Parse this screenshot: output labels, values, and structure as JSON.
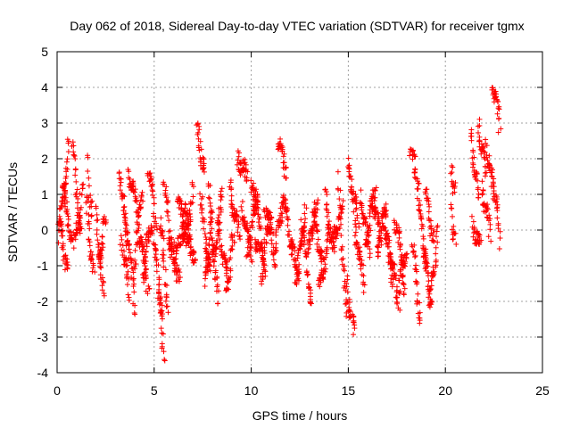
{
  "chart_data": {
    "type": "scatter",
    "title": "Day 062 of 2018, Sidereal Day-to-day VTEC variation (SDTVAR) for receiver tgmx",
    "xlabel": "GPS time / hours",
    "ylabel": "SDTVAR / TECUs",
    "xlim": [
      0,
      25
    ],
    "ylim": [
      -4,
      5
    ],
    "xticks": [
      "0",
      "5",
      "10",
      "15",
      "20",
      "25"
    ],
    "yticks": [
      "-4",
      "-3",
      "-2",
      "-1",
      "0",
      "1",
      "2",
      "3",
      "4",
      "5"
    ],
    "grid": true,
    "marker": "+",
    "color": "#ff0000",
    "segments": [
      {
        "x": [
          0.05,
          0.6
        ],
        "y": [
          -0.3,
          2.4
        ]
      },
      {
        "x": [
          0.1,
          0.55
        ],
        "y": [
          0.2,
          -1.1
        ]
      },
      {
        "x": [
          0.3,
          0.8
        ],
        "y": [
          1.2,
          -0.4
        ]
      },
      {
        "x": [
          0.8,
          1.25
        ],
        "y": [
          2.3,
          -0.3
        ]
      },
      {
        "x": [
          0.9,
          1.3
        ],
        "y": [
          -0.5,
          1.1
        ]
      },
      {
        "x": [
          1.5,
          1.9
        ],
        "y": [
          0.8,
          -1.4
        ]
      },
      {
        "x": [
          1.6,
          1.8
        ],
        "y": [
          1.9,
          0.2
        ]
      },
      {
        "x": [
          2.0,
          2.4
        ],
        "y": [
          0.5,
          -2.0
        ]
      },
      {
        "x": [
          2.1,
          2.5
        ],
        "y": [
          -0.8,
          0.2
        ]
      },
      {
        "x": [
          3.2,
          3.6
        ],
        "y": [
          1.8,
          -0.3
        ]
      },
      {
        "x": [
          3.3,
          3.7
        ],
        "y": [
          -0.2,
          -1.8
        ]
      },
      {
        "x": [
          3.5,
          4.0
        ],
        "y": [
          0.5,
          -2.1
        ]
      },
      {
        "x": [
          3.7,
          4.2
        ],
        "y": [
          1.7,
          0.4
        ]
      },
      {
        "x": [
          4.0,
          4.4
        ],
        "y": [
          -0.8,
          1.2
        ]
      },
      {
        "x": [
          4.2,
          4.7
        ],
        "y": [
          0.1,
          -1.6
        ]
      },
      {
        "x": [
          4.4,
          4.9
        ],
        "y": [
          -1.2,
          0.3
        ]
      },
      {
        "x": [
          4.7,
          5.1
        ],
        "y": [
          1.8,
          0.2
        ]
      },
      {
        "x": [
          5.0,
          5.4
        ],
        "y": [
          -0.2,
          -2.3
        ]
      },
      {
        "x": [
          5.2,
          5.5
        ],
        "y": [
          -1.5,
          -3.5
        ]
      },
      {
        "x": [
          5.3,
          5.7
        ],
        "y": [
          0.4,
          -2.1
        ]
      },
      {
        "x": [
          5.5,
          5.9
        ],
        "y": [
          1.4,
          -0.6
        ]
      },
      {
        "x": [
          5.8,
          6.3
        ],
        "y": [
          -0.3,
          -1.3
        ]
      },
      {
        "x": [
          6.0,
          6.5
        ],
        "y": [
          -1.2,
          0.5
        ]
      },
      {
        "x": [
          6.2,
          6.8
        ],
        "y": [
          0.8,
          -0.4
        ]
      },
      {
        "x": [
          6.5,
          7.0
        ],
        "y": [
          -0.5,
          1.1
        ]
      },
      {
        "x": [
          6.6,
          7.1
        ],
        "y": [
          0.6,
          -1.0
        ]
      },
      {
        "x": [
          7.2,
          7.6
        ],
        "y": [
          2.8,
          1.6
        ]
      },
      {
        "x": [
          7.4,
          7.9
        ],
        "y": [
          0.8,
          -1.3
        ]
      },
      {
        "x": [
          7.6,
          8.0
        ],
        "y": [
          -1.6,
          0.4
        ]
      },
      {
        "x": [
          7.8,
          8.3
        ],
        "y": [
          1.1,
          -2.2
        ]
      },
      {
        "x": [
          8.0,
          8.5
        ],
        "y": [
          -1.0,
          0.9
        ]
      },
      {
        "x": [
          8.3,
          8.8
        ],
        "y": [
          0.2,
          -1.5
        ]
      },
      {
        "x": [
          8.7,
          9.1
        ],
        "y": [
          -1.7,
          -0.2
        ]
      },
      {
        "x": [
          8.9,
          9.4
        ],
        "y": [
          1.2,
          -0.3
        ]
      },
      {
        "x": [
          9.3,
          9.8
        ],
        "y": [
          2.1,
          1.4
        ]
      },
      {
        "x": [
          9.5,
          10.0
        ],
        "y": [
          0.7,
          -0.7
        ]
      },
      {
        "x": [
          9.8,
          10.3
        ],
        "y": [
          -0.5,
          0.8
        ]
      },
      {
        "x": [
          10.0,
          10.5
        ],
        "y": [
          1.5,
          0.1
        ]
      },
      {
        "x": [
          10.2,
          10.7
        ],
        "y": [
          -0.2,
          -1.0
        ]
      },
      {
        "x": [
          10.5,
          11.0
        ],
        "y": [
          -1.2,
          0.4
        ]
      },
      {
        "x": [
          10.7,
          11.2
        ],
        "y": [
          0.8,
          -0.6
        ]
      },
      {
        "x": [
          11.2,
          11.6
        ],
        "y": [
          -0.8,
          0.9
        ]
      },
      {
        "x": [
          11.4,
          11.8
        ],
        "y": [
          2.5,
          1.7
        ]
      },
      {
        "x": [
          11.6,
          12.1
        ],
        "y": [
          1.0,
          -0.5
        ]
      },
      {
        "x": [
          12.0,
          12.5
        ],
        "y": [
          -0.4,
          -1.2
        ]
      },
      {
        "x": [
          12.3,
          12.8
        ],
        "y": [
          -1.5,
          0.6
        ]
      },
      {
        "x": [
          12.6,
          13.1
        ],
        "y": [
          0.2,
          -2.1
        ]
      },
      {
        "x": [
          12.9,
          13.4
        ],
        "y": [
          -0.8,
          0.8
        ]
      },
      {
        "x": [
          13.2,
          13.7
        ],
        "y": [
          0.5,
          -1.0
        ]
      },
      {
        "x": [
          13.5,
          14.0
        ],
        "y": [
          -1.8,
          -0.2
        ]
      },
      {
        "x": [
          13.8,
          14.3
        ],
        "y": [
          0.9,
          -0.8
        ]
      },
      {
        "x": [
          14.2,
          14.7
        ],
        "y": [
          -0.3,
          0.6
        ]
      },
      {
        "x": [
          14.5,
          14.9
        ],
        "y": [
          1.3,
          -2.6
        ]
      },
      {
        "x": [
          14.9,
          15.3
        ],
        "y": [
          -1.5,
          -3.0
        ]
      },
      {
        "x": [
          15.0,
          15.5
        ],
        "y": [
          1.9,
          0.2
        ]
      },
      {
        "x": [
          15.3,
          15.8
        ],
        "y": [
          0.3,
          -1.6
        ]
      },
      {
        "x": [
          15.6,
          16.1
        ],
        "y": [
          1.0,
          -0.6
        ]
      },
      {
        "x": [
          15.9,
          16.4
        ],
        "y": [
          -0.4,
          1.2
        ]
      },
      {
        "x": [
          16.2,
          16.7
        ],
        "y": [
          1.0,
          -0.3
        ]
      },
      {
        "x": [
          16.5,
          17.0
        ],
        "y": [
          -0.5,
          0.8
        ]
      },
      {
        "x": [
          16.8,
          17.3
        ],
        "y": [
          0.3,
          -1.3
        ]
      },
      {
        "x": [
          17.1,
          17.6
        ],
        "y": [
          -0.6,
          -2.0
        ]
      },
      {
        "x": [
          17.4,
          17.9
        ],
        "y": [
          0.4,
          -1.5
        ]
      },
      {
        "x": [
          17.6,
          18.0
        ],
        "y": [
          -1.5,
          -0.5
        ]
      },
      {
        "x": [
          18.2,
          18.6
        ],
        "y": [
          2.3,
          1.3
        ]
      },
      {
        "x": [
          18.3,
          18.7
        ],
        "y": [
          -0.3,
          -2.5
        ]
      },
      {
        "x": [
          18.6,
          19.1
        ],
        "y": [
          0.8,
          -1.2
        ]
      },
      {
        "x": [
          18.9,
          19.3
        ],
        "y": [
          -0.6,
          -2.2
        ]
      },
      {
        "x": [
          19.0,
          19.4
        ],
        "y": [
          1.0,
          -0.3
        ]
      },
      {
        "x": [
          19.2,
          19.6
        ],
        "y": [
          -2.0,
          -0.1
        ]
      },
      {
        "x": [
          20.3,
          20.5
        ],
        "y": [
          1.6,
          1.0
        ]
      },
      {
        "x": [
          20.3,
          20.5
        ],
        "y": [
          0.5,
          -0.4
        ]
      },
      {
        "x": [
          21.3,
          21.7
        ],
        "y": [
          2.7,
          0.8
        ]
      },
      {
        "x": [
          21.4,
          21.8
        ],
        "y": [
          0.2,
          -0.5
        ]
      },
      {
        "x": [
          21.7,
          22.1
        ],
        "y": [
          3.0,
          1.5
        ]
      },
      {
        "x": [
          21.9,
          22.3
        ],
        "y": [
          1.2,
          -0.1
        ]
      },
      {
        "x": [
          22.1,
          22.5
        ],
        "y": [
          2.5,
          1.0
        ]
      },
      {
        "x": [
          22.4,
          22.8
        ],
        "y": [
          4.2,
          3.0
        ]
      },
      {
        "x": [
          22.5,
          22.8
        ],
        "y": [
          1.4,
          -0.2
        ]
      }
    ]
  }
}
